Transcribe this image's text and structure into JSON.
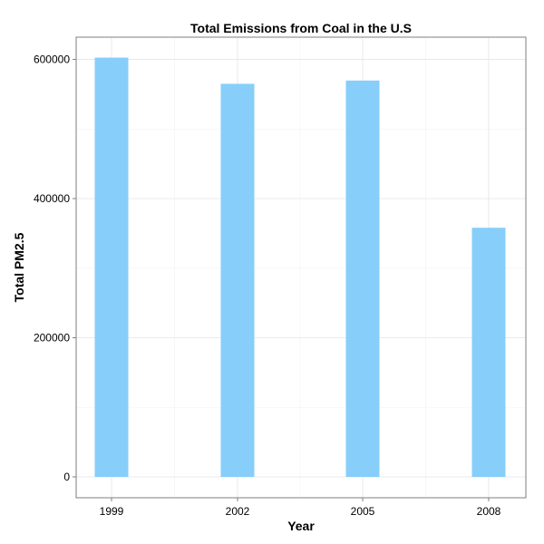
{
  "chart_data": {
    "type": "bar",
    "title": "Total Emissions from Coal in the U.S",
    "xlabel": "Year",
    "ylabel": "Total PM2.5",
    "categories": [
      "1999",
      "2002",
      "2005",
      "2008"
    ],
    "values": [
      602624,
      564940,
      569655,
      358084
    ],
    "ylim": [
      -30000,
      632000
    ],
    "yticks": [
      0,
      200000,
      400000,
      600000
    ],
    "ytick_labels": [
      "0",
      "200000",
      "400000",
      "600000"
    ],
    "grid": true,
    "bar_color": "#87CEFA"
  }
}
